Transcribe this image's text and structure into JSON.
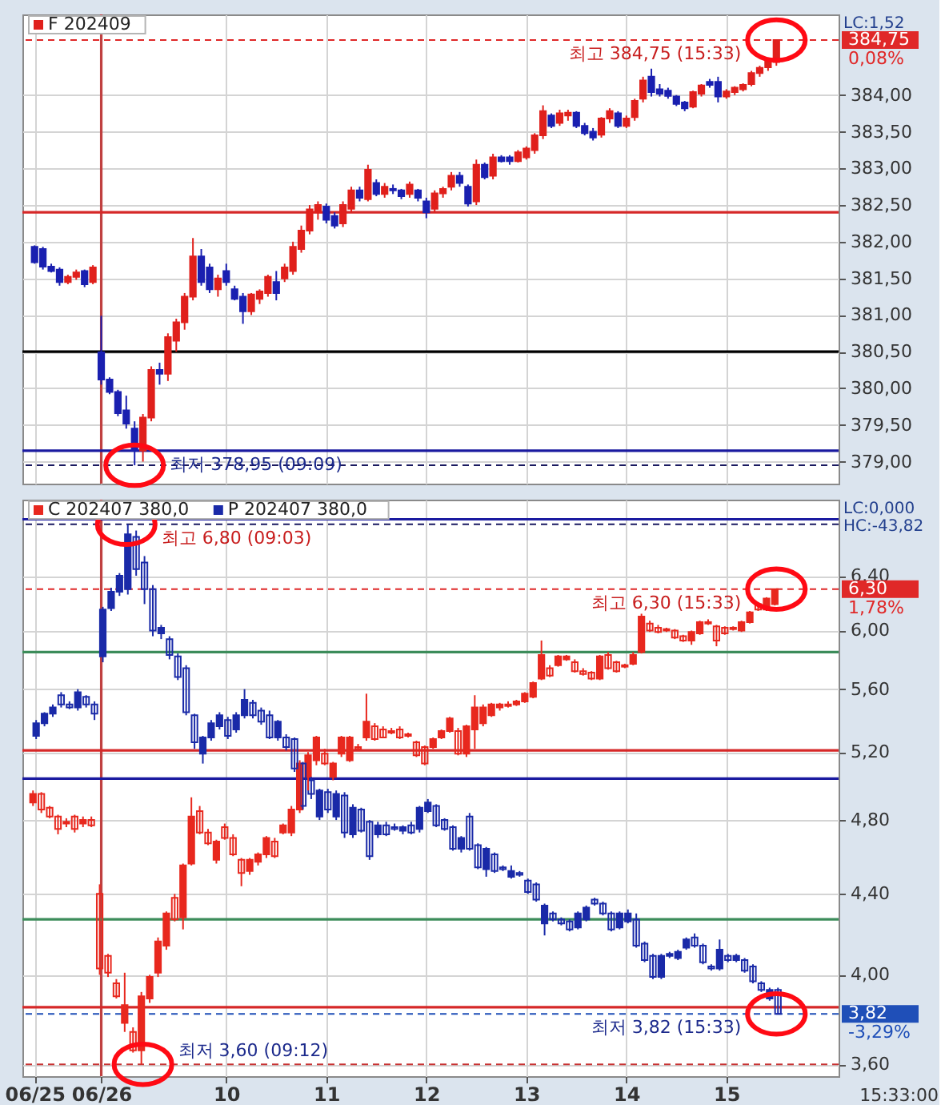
{
  "chart_data": [
    {
      "type": "candlestick",
      "categories": [
        "06/25",
        null,
        null,
        null,
        null,
        null,
        null,
        null,
        "06/26",
        null,
        null,
        null,
        null,
        null,
        null,
        null,
        null,
        null,
        null,
        null,
        null,
        null,
        null,
        "10",
        null,
        null,
        null,
        null,
        null,
        null,
        null,
        null,
        null,
        null,
        null,
        "11",
        null,
        null,
        null,
        null,
        null,
        null,
        null,
        null,
        null,
        null,
        null,
        "12",
        null,
        null,
        null,
        null,
        null,
        null,
        null,
        null,
        null,
        null,
        null,
        "13",
        null,
        null,
        null,
        null,
        null,
        null,
        null,
        null,
        null,
        null,
        null,
        "14",
        null,
        null,
        null,
        null,
        null,
        null,
        null,
        null,
        null,
        null,
        null,
        "15",
        null,
        null,
        null,
        null,
        null,
        null,
        null,
        null,
        null,
        null,
        null,
        null
      ],
      "series": [
        {
          "name": "F 202409",
          "color": "#e0201c",
          "colors": [
            "#1a20b0",
            "#1a20b0",
            "#1a20b0",
            "#1a20b0",
            "#e0201c",
            "#e0201c",
            "#1a20b0",
            "#e0201c",
            "#1a20b0",
            "#1a20b0",
            "#1a20b0",
            "#1a20b0",
            "#1a20b0",
            "#e0201c",
            "#e0201c",
            "#1a20b0",
            "#e0201c",
            "#e0201c",
            "#e0201c",
            "#e0201c",
            "#1a20b0",
            "#1a20b0",
            "#e0201c",
            "#1a20b0",
            "#1a20b0",
            "#1a20b0",
            "#e0201c",
            "#e0201c",
            "#e0201c",
            "#1a20b0",
            "#e0201c",
            "#e0201c",
            "#e0201c",
            "#e0201c",
            "#e0201c",
            "#1a20b0",
            "#1a20b0",
            "#e0201c",
            "#e0201c",
            "#1a20b0",
            "#e0201c",
            "#1a20b0",
            "#e0201c",
            "#1a20b0",
            "#1a20b0",
            "#e0201c",
            "#1a20b0",
            "#1a20b0",
            "#e0201c",
            "#e0201c",
            "#e0201c",
            "#1a20b0",
            "#1a20b0",
            "#e0201c",
            "#1a20b0",
            "#e0201c",
            "#1a20b0",
            "#1a20b0",
            "#e0201c",
            "#e0201c",
            "#e0201c",
            "#e0201c",
            "#1a20b0",
            "#e0201c",
            "#e0201c",
            "#1a20b0",
            "#1a20b0",
            "#1a20b0",
            "#e0201c",
            "#e0201c",
            "#1a20b0",
            "#e0201c",
            "#e0201c",
            "#e0201c",
            "#1a20b0",
            "#1a20b0",
            "#1a20b0",
            "#1a20b0",
            "#1a20b0",
            "#e0201c",
            "#e0201c",
            "#1a20b0",
            "#1a20b0",
            "#e0201c",
            "#e0201c",
            "#e0201c",
            "#e0201c",
            "#e0201c",
            "#e0201c",
            "#e0201c",
            null,
            null,
            null,
            null,
            null,
            null
          ],
          "ohlc": [
            [
              381.93,
              381.95,
              381.7,
              381.72
            ],
            [
              381.9,
              381.93,
              381.62,
              381.66
            ],
            [
              381.66,
              381.7,
              381.58,
              381.6
            ],
            [
              381.62,
              381.65,
              381.4,
              381.45
            ],
            [
              381.45,
              381.55,
              381.42,
              381.52
            ],
            [
              381.52,
              381.62,
              381.48,
              381.58
            ],
            [
              381.6,
              381.62,
              381.38,
              381.42
            ],
            [
              381.45,
              381.68,
              381.42,
              381.65
            ],
            [
              380.49,
              380.99,
              380.05,
              380.12
            ],
            [
              380.12,
              380.15,
              379.92,
              379.95
            ],
            [
              379.95,
              379.98,
              379.62,
              379.66
            ],
            [
              379.7,
              379.9,
              379.45,
              379.52
            ],
            [
              379.45,
              379.55,
              378.95,
              379.15
            ],
            [
              379.15,
              379.65,
              379.0,
              379.6
            ],
            [
              379.6,
              380.3,
              379.55,
              380.25
            ],
            [
              380.25,
              380.35,
              380.05,
              380.2
            ],
            [
              380.2,
              380.75,
              380.1,
              380.7
            ],
            [
              380.65,
              380.95,
              380.5,
              380.9
            ],
            [
              380.9,
              381.3,
              380.8,
              381.25
            ],
            [
              381.25,
              382.05,
              381.2,
              381.8
            ],
            [
              381.8,
              381.9,
              381.4,
              381.45
            ],
            [
              381.65,
              381.7,
              381.3,
              381.35
            ],
            [
              381.35,
              381.55,
              381.25,
              381.5
            ],
            [
              381.6,
              381.7,
              381.4,
              381.45
            ],
            [
              381.35,
              381.4,
              381.2,
              381.22
            ],
            [
              381.25,
              381.3,
              380.88,
              381.05
            ],
            [
              381.05,
              381.3,
              381.0,
              381.28
            ],
            [
              381.22,
              381.35,
              381.15,
              381.32
            ],
            [
              381.3,
              381.55,
              381.25,
              381.52
            ],
            [
              381.45,
              381.6,
              381.2,
              381.3
            ],
            [
              381.5,
              381.7,
              381.45,
              381.65
            ],
            [
              381.6,
              382.0,
              381.55,
              381.93
            ],
            [
              381.9,
              382.22,
              381.85,
              382.15
            ],
            [
              382.15,
              382.5,
              382.1,
              382.44
            ],
            [
              382.4,
              382.55,
              382.3,
              382.5
            ],
            [
              382.48,
              382.52,
              382.25,
              382.3
            ],
            [
              382.35,
              382.4,
              382.18,
              382.22
            ],
            [
              382.25,
              382.55,
              382.2,
              382.5
            ],
            [
              382.45,
              382.75,
              382.4,
              382.7
            ],
            [
              382.7,
              382.75,
              382.55,
              382.6
            ],
            [
              382.58,
              383.05,
              382.55,
              382.98
            ],
            [
              382.8,
              382.85,
              382.62,
              382.65
            ],
            [
              382.65,
              382.8,
              382.6,
              382.75
            ],
            [
              382.72,
              382.78,
              382.65,
              382.7
            ],
            [
              382.7,
              382.72,
              382.58,
              382.62
            ],
            [
              382.65,
              382.82,
              382.6,
              382.78
            ],
            [
              382.7,
              382.72,
              382.55,
              382.6
            ],
            [
              382.55,
              382.6,
              382.32,
              382.4
            ],
            [
              382.45,
              382.7,
              382.4,
              382.66
            ],
            [
              382.66,
              382.75,
              382.6,
              382.72
            ],
            [
              382.75,
              382.95,
              382.7,
              382.9
            ],
            [
              382.9,
              382.95,
              382.75,
              382.8
            ],
            [
              382.75,
              382.78,
              382.48,
              382.52
            ],
            [
              382.55,
              383.12,
              382.5,
              383.05
            ],
            [
              383.05,
              383.08,
              382.85,
              382.88
            ],
            [
              382.9,
              383.2,
              382.85,
              383.15
            ],
            [
              383.15,
              383.18,
              383.08,
              383.1
            ],
            [
              383.15,
              383.18,
              383.05,
              383.1
            ],
            [
              383.1,
              383.25,
              383.08,
              383.22
            ],
            [
              383.15,
              383.3,
              383.12,
              383.27
            ],
            [
              383.25,
              383.48,
              383.2,
              383.45
            ],
            [
              383.45,
              383.86,
              383.4,
              383.78
            ],
            [
              383.72,
              383.75,
              383.55,
              383.58
            ],
            [
              383.62,
              383.8,
              383.58,
              383.75
            ],
            [
              383.72,
              383.8,
              383.65,
              383.76
            ],
            [
              383.76,
              383.78,
              383.55,
              383.58
            ],
            [
              383.58,
              383.62,
              383.45,
              383.48
            ],
            [
              383.5,
              383.55,
              383.38,
              383.42
            ],
            [
              383.46,
              383.7,
              383.42,
              383.68
            ],
            [
              383.68,
              383.82,
              383.62,
              383.78
            ],
            [
              383.75,
              383.78,
              383.55,
              383.58
            ],
            [
              383.58,
              383.72,
              383.55,
              383.68
            ],
            [
              383.7,
              383.95,
              383.65,
              383.92
            ],
            [
              383.95,
              384.25,
              383.9,
              384.2
            ],
            [
              384.25,
              384.36,
              383.98,
              384.04
            ],
            [
              384.08,
              384.15,
              383.98,
              384.02
            ],
            [
              384.06,
              384.1,
              383.95,
              383.99
            ],
            [
              383.98,
              384.0,
              383.85,
              383.88
            ],
            [
              383.9,
              383.92,
              383.78,
              383.82
            ],
            [
              383.84,
              384.06,
              383.82,
              384.04
            ],
            [
              384.02,
              384.15,
              383.98,
              384.13
            ],
            [
              384.18,
              384.22,
              384.1,
              384.14
            ],
            [
              384.18,
              384.25,
              383.9,
              383.98
            ],
            [
              383.98,
              384.08,
              383.95,
              384.05
            ],
            [
              384.04,
              384.12,
              384.0,
              384.1
            ],
            [
              384.08,
              384.16,
              384.05,
              384.14
            ],
            [
              384.15,
              384.33,
              384.12,
              384.3
            ],
            [
              384.3,
              384.4,
              384.25,
              384.37
            ],
            [
              384.38,
              384.5,
              384.33,
              384.47
            ],
            [
              384.45,
              384.75,
              384.4,
              384.75
            ],
            null,
            null,
            null,
            null,
            null,
            null
          ]
        }
      ],
      "ylim": [
        378.7,
        385.1
      ],
      "yticks": [
        {
          "value": 379,
          "label": "379,00"
        },
        {
          "value": 379.5,
          "label": "379,50"
        },
        {
          "value": 380,
          "label": "380,00"
        },
        {
          "value": 380.5,
          "label": "380,50"
        },
        {
          "value": 381,
          "label": "381,00"
        },
        {
          "value": 381.5,
          "label": "381,50"
        },
        {
          "value": 382,
          "label": "382,00"
        },
        {
          "value": 382.5,
          "label": "382,50"
        },
        {
          "value": 383,
          "label": "383,00"
        },
        {
          "value": 383.5,
          "label": "383,50"
        },
        {
          "value": 384,
          "label": "384,00"
        }
      ],
      "grid": true,
      "legend": "top left",
      "tick_labels": "y",
      "ref_lines": [
        {
          "axis": "x",
          "value": "06/26",
          "color": "#c04040"
        },
        {
          "axis": "y",
          "value": 384.75,
          "color": "#e02828",
          "line_style": "dashed",
          "label": "384,75\n0,08%"
        },
        {
          "axis": "y",
          "value": 382.4,
          "color": "#d62828"
        },
        {
          "axis": "y",
          "value": 380.5,
          "color": "#000000"
        },
        {
          "axis": "y",
          "value": 379.15,
          "color": "#1a1aa0"
        },
        {
          "axis": "y",
          "value": 378.95,
          "color": "#1a1a60",
          "line_style": "dashed"
        }
      ],
      "annotations": [
        {
          "text": "최고 384,75 (15:33)",
          "y": 384.75
        },
        {
          "text": "최저 378,95 (09:09)",
          "y": 378.95
        },
        "LC:1,52"
      ]
    },
    {
      "type": "candlestick",
      "categories": [
        "06/25",
        null,
        null,
        null,
        null,
        null,
        null,
        null,
        "06/26",
        null,
        null,
        null,
        null,
        null,
        null,
        null,
        null,
        null,
        null,
        null,
        null,
        null,
        null,
        "10",
        null,
        null,
        null,
        null,
        null,
        null,
        null,
        null,
        null,
        null,
        null,
        "11",
        null,
        null,
        null,
        null,
        null,
        null,
        null,
        null,
        null,
        null,
        null,
        "12",
        null,
        null,
        null,
        null,
        null,
        null,
        null,
        null,
        null,
        null,
        null,
        "13",
        null,
        null,
        null,
        null,
        null,
        null,
        null,
        null,
        null,
        null,
        null,
        "14",
        null,
        null,
        null,
        null,
        null,
        null,
        null,
        null,
        null,
        null,
        null,
        "15",
        null,
        null,
        null,
        null,
        null,
        null,
        null,
        null,
        null,
        null,
        null,
        null
      ],
      "series": [
        {
          "name": "C 202407 380,0",
          "color": "#e8281e",
          "ohlc": [
            [
              4.9,
              4.97,
              4.88,
              4.95
            ],
            [
              4.95,
              4.96,
              4.84,
              4.86
            ],
            [
              4.87,
              4.88,
              4.81,
              4.82
            ],
            [
              4.82,
              4.83,
              4.72,
              4.75
            ],
            [
              4.78,
              4.81,
              4.76,
              4.79
            ],
            [
              4.82,
              4.83,
              4.73,
              4.75
            ],
            [
              4.78,
              4.82,
              4.76,
              4.8
            ],
            [
              4.8,
              4.82,
              4.76,
              4.77
            ],
            [
              4.4,
              4.45,
              4.0,
              4.03
            ],
            [
              4.09,
              4.1,
              3.99,
              4.01
            ],
            [
              3.96,
              3.98,
              3.89,
              3.9
            ],
            [
              3.78,
              4.01,
              3.74,
              3.86
            ],
            [
              3.74,
              3.76,
              3.65,
              3.66
            ],
            [
              3.66,
              3.92,
              3.6,
              3.9
            ],
            [
              3.89,
              4.0,
              3.87,
              3.99
            ],
            [
              4.01,
              4.18,
              3.99,
              4.16
            ],
            [
              4.14,
              4.31,
              4.12,
              4.3
            ],
            [
              4.38,
              4.4,
              4.26,
              4.27
            ],
            [
              4.28,
              4.56,
              4.22,
              4.55
            ],
            [
              4.56,
              4.93,
              4.55,
              4.82
            ],
            [
              4.85,
              4.88,
              4.72,
              4.73
            ],
            [
              4.73,
              4.75,
              4.66,
              4.67
            ],
            [
              4.58,
              4.69,
              4.56,
              4.68
            ],
            [
              4.76,
              4.78,
              4.69,
              4.7
            ],
            [
              4.7,
              4.72,
              4.6,
              4.61
            ],
            [
              4.58,
              4.59,
              4.44,
              4.51
            ],
            [
              4.52,
              4.59,
              4.5,
              4.58
            ],
            [
              4.57,
              4.62,
              4.55,
              4.61
            ],
            [
              4.61,
              4.71,
              4.59,
              4.7
            ],
            [
              4.68,
              4.7,
              4.59,
              4.6
            ],
            [
              4.73,
              4.78,
              4.72,
              4.77
            ],
            [
              4.73,
              4.88,
              4.71,
              4.86
            ],
            [
              4.86,
              5.15,
              4.84,
              5.13
            ],
            [
              5.05,
              5.2,
              4.97,
              5.18
            ],
            [
              5.15,
              5.3,
              5.12,
              5.29
            ],
            [
              5.19,
              5.22,
              5.12,
              5.13
            ],
            [
              5.05,
              5.14,
              5.03,
              5.13
            ],
            [
              5.19,
              5.3,
              5.17,
              5.29
            ],
            [
              5.15,
              5.3,
              5.14,
              5.29
            ],
            [
              5.23,
              5.25,
              5.21,
              5.22
            ],
            [
              5.29,
              5.57,
              5.27,
              5.39
            ],
            [
              5.36,
              5.38,
              5.27,
              5.28
            ],
            [
              5.34,
              5.36,
              5.29,
              5.29
            ],
            [
              5.33,
              5.35,
              5.31,
              5.32
            ],
            [
              5.34,
              5.36,
              5.28,
              5.29
            ],
            [
              5.31,
              5.32,
              5.29,
              5.3
            ],
            [
              5.26,
              5.27,
              5.17,
              5.18
            ],
            [
              5.23,
              5.24,
              5.12,
              5.13
            ],
            [
              5.23,
              5.29,
              5.22,
              5.28
            ],
            [
              5.29,
              5.34,
              5.28,
              5.33
            ],
            [
              5.33,
              5.42,
              5.32,
              5.41
            ],
            [
              5.33,
              5.35,
              5.18,
              5.19
            ],
            [
              5.19,
              5.37,
              5.17,
              5.36
            ],
            [
              5.34,
              5.56,
              5.22,
              5.48
            ],
            [
              5.38,
              5.5,
              5.36,
              5.48
            ],
            [
              5.43,
              5.51,
              5.42,
              5.5
            ],
            [
              5.48,
              5.51,
              5.46,
              5.5
            ],
            [
              5.5,
              5.52,
              5.48,
              5.49
            ],
            [
              5.5,
              5.53,
              5.49,
              5.52
            ],
            [
              5.52,
              5.58,
              5.51,
              5.57
            ],
            [
              5.55,
              5.65,
              5.54,
              5.64
            ],
            [
              5.67,
              5.93,
              5.66,
              5.83
            ],
            [
              5.74,
              5.76,
              5.68,
              5.69
            ],
            [
              5.76,
              5.83,
              5.75,
              5.82
            ],
            [
              5.8,
              5.83,
              5.79,
              5.82
            ],
            [
              5.78,
              5.8,
              5.71,
              5.72
            ],
            [
              5.72,
              5.74,
              5.69,
              5.7
            ],
            [
              5.71,
              5.72,
              5.66,
              5.67
            ],
            [
              5.67,
              5.83,
              5.66,
              5.82
            ],
            [
              5.83,
              5.85,
              5.73,
              5.74
            ],
            [
              5.78,
              5.79,
              5.71,
              5.72
            ],
            [
              5.75,
              5.77,
              5.74,
              5.76
            ],
            [
              5.77,
              5.85,
              5.76,
              5.83
            ],
            [
              5.85,
              6.12,
              5.84,
              6.1
            ],
            [
              6.05,
              6.07,
              5.99,
              6.0
            ],
            [
              6.02,
              6.04,
              5.98,
              5.99
            ],
            [
              6.0,
              6.02,
              5.99,
              6.01
            ],
            [
              6.0,
              6.01,
              5.94,
              5.95
            ],
            [
              5.96,
              5.97,
              5.92,
              5.93
            ],
            [
              5.93,
              6.0,
              5.9,
              5.99
            ],
            [
              5.98,
              6.07,
              5.97,
              6.06
            ],
            [
              6.06,
              6.08,
              6.04,
              6.05
            ],
            [
              6.03,
              6.04,
              5.89,
              5.93
            ],
            [
              6.02,
              6.03,
              5.97,
              5.98
            ],
            [
              6.01,
              6.03,
              6.0,
              6.02
            ],
            [
              6.0,
              6.07,
              5.99,
              6.06
            ],
            [
              6.06,
              6.14,
              6.05,
              6.13
            ],
            [
              6.19,
              6.2,
              6.14,
              6.15
            ],
            [
              6.15,
              6.24,
              6.14,
              6.23
            ],
            [
              6.19,
              6.3,
              6.18,
              6.3
            ],
            null,
            null,
            null,
            null,
            null,
            null
          ]
        },
        {
          "name": "P 202407 380,0",
          "color": "#1a2aa8",
          "ohlc": [
            [
              5.3,
              5.4,
              5.28,
              5.38
            ],
            [
              5.38,
              5.45,
              5.36,
              5.44
            ],
            [
              5.44,
              5.5,
              5.42,
              5.48
            ],
            [
              5.56,
              5.58,
              5.48,
              5.5
            ],
            [
              5.5,
              5.52,
              5.47,
              5.48
            ],
            [
              5.48,
              5.6,
              5.46,
              5.58
            ],
            [
              5.55,
              5.56,
              5.48,
              5.5
            ],
            [
              5.5,
              5.52,
              5.4,
              5.44
            ],
            [
              5.82,
              6.17,
              5.78,
              6.15
            ],
            [
              6.16,
              6.31,
              6.14,
              6.28
            ],
            [
              6.28,
              6.42,
              6.25,
              6.4
            ],
            [
              6.3,
              6.8,
              6.26,
              6.72
            ],
            [
              6.7,
              6.75,
              6.4,
              6.45
            ],
            [
              6.5,
              6.55,
              6.19,
              6.3
            ],
            [
              6.3,
              6.33,
              5.96,
              6.0
            ],
            [
              5.98,
              6.04,
              5.94,
              6.02
            ],
            [
              5.94,
              5.96,
              5.8,
              5.83
            ],
            [
              5.82,
              5.84,
              5.66,
              5.68
            ],
            [
              5.74,
              5.76,
              5.43,
              5.45
            ],
            [
              5.43,
              5.44,
              5.22,
              5.26
            ],
            [
              5.19,
              5.3,
              5.13,
              5.29
            ],
            [
              5.29,
              5.4,
              5.27,
              5.38
            ],
            [
              5.36,
              5.45,
              5.34,
              5.43
            ],
            [
              5.4,
              5.42,
              5.28,
              5.3
            ],
            [
              5.34,
              5.45,
              5.32,
              5.43
            ],
            [
              5.43,
              5.6,
              5.41,
              5.53
            ],
            [
              5.51,
              5.53,
              5.41,
              5.43
            ],
            [
              5.46,
              5.48,
              5.37,
              5.39
            ],
            [
              5.43,
              5.46,
              5.28,
              5.29
            ],
            [
              5.29,
              5.4,
              5.27,
              5.39
            ],
            [
              5.29,
              5.31,
              5.21,
              5.23
            ],
            [
              5.28,
              5.29,
              5.08,
              5.1
            ],
            [
              5.13,
              5.14,
              4.86,
              4.88
            ],
            [
              5.03,
              5.05,
              4.92,
              4.95
            ],
            [
              4.82,
              4.98,
              4.8,
              4.97
            ],
            [
              4.96,
              4.98,
              4.84,
              4.86
            ],
            [
              4.82,
              4.97,
              4.8,
              4.95
            ],
            [
              4.94,
              4.96,
              4.7,
              4.73
            ],
            [
              4.72,
              4.89,
              4.7,
              4.87
            ],
            [
              4.86,
              4.87,
              4.73,
              4.74
            ],
            [
              4.79,
              4.8,
              4.58,
              4.6
            ],
            [
              4.72,
              4.79,
              4.7,
              4.77
            ],
            [
              4.77,
              4.79,
              4.71,
              4.72
            ],
            [
              4.76,
              4.78,
              4.74,
              4.75
            ],
            [
              4.74,
              4.77,
              4.72,
              4.76
            ],
            [
              4.77,
              4.79,
              4.72,
              4.73
            ],
            [
              4.75,
              4.88,
              4.73,
              4.87
            ],
            [
              4.85,
              4.92,
              4.84,
              4.9
            ],
            [
              4.88,
              4.89,
              4.76,
              4.77
            ],
            [
              4.8,
              4.81,
              4.74,
              4.75
            ],
            [
              4.76,
              4.77,
              4.63,
              4.64
            ],
            [
              4.64,
              4.71,
              4.62,
              4.7
            ],
            [
              4.82,
              4.84,
              4.63,
              4.64
            ],
            [
              4.66,
              4.67,
              4.53,
              4.54
            ],
            [
              4.53,
              4.65,
              4.49,
              4.64
            ],
            [
              4.61,
              4.62,
              4.51,
              4.52
            ],
            [
              4.54,
              4.55,
              4.52,
              4.53
            ],
            [
              4.49,
              4.55,
              4.48,
              4.52
            ],
            [
              4.51,
              4.52,
              4.49,
              4.5
            ],
            [
              4.47,
              4.48,
              4.4,
              4.41
            ],
            [
              4.45,
              4.46,
              4.36,
              4.37
            ],
            [
              4.25,
              4.35,
              4.19,
              4.34
            ],
            [
              4.3,
              4.31,
              4.26,
              4.27
            ],
            [
              4.27,
              4.28,
              4.24,
              4.25
            ],
            [
              4.26,
              4.27,
              4.21,
              4.22
            ],
            [
              4.23,
              4.31,
              4.22,
              4.3
            ],
            [
              4.27,
              4.34,
              4.26,
              4.33
            ],
            [
              4.37,
              4.38,
              4.34,
              4.35
            ],
            [
              4.35,
              4.36,
              4.29,
              4.3
            ],
            [
              4.3,
              4.31,
              4.21,
              4.22
            ],
            [
              4.23,
              4.31,
              4.22,
              4.3
            ],
            [
              4.26,
              4.32,
              4.25,
              4.3
            ],
            [
              4.27,
              4.3,
              4.13,
              4.14
            ],
            [
              4.15,
              4.16,
              4.06,
              4.07
            ],
            [
              4.09,
              4.1,
              3.98,
              3.99
            ],
            [
              3.99,
              4.1,
              3.98,
              4.09
            ],
            [
              4.09,
              4.11,
              4.08,
              4.1
            ],
            [
              4.08,
              4.12,
              4.07,
              4.11
            ],
            [
              4.13,
              4.18,
              4.12,
              4.17
            ],
            [
              4.18,
              4.2,
              4.13,
              4.14
            ],
            [
              4.14,
              4.15,
              4.05,
              4.06
            ],
            [
              4.04,
              4.05,
              4.02,
              4.03
            ],
            [
              4.03,
              4.17,
              4.02,
              4.12
            ],
            [
              4.09,
              4.1,
              4.06,
              4.07
            ],
            [
              4.07,
              4.1,
              4.06,
              4.09
            ],
            [
              4.07,
              4.08,
              4.01,
              4.02
            ],
            [
              4.04,
              4.05,
              3.96,
              3.97
            ],
            [
              3.96,
              3.97,
              3.92,
              3.93
            ],
            [
              3.89,
              3.94,
              3.88,
              3.93
            ],
            [
              3.93,
              3.94,
              3.82,
              3.82
            ],
            null,
            null,
            null,
            null,
            null,
            null
          ]
        }
      ],
      "ylim": [
        3.55,
        7.0
      ],
      "log": "y",
      "yticks": [
        {
          "value": 3.6,
          "label": "3,60"
        },
        {
          "value": 4.0,
          "label": "4,00"
        },
        {
          "value": 4.4,
          "label": "4,40"
        },
        {
          "value": 4.8,
          "label": "4,80"
        },
        {
          "value": 5.2,
          "label": "5,20"
        },
        {
          "value": 5.6,
          "label": "5,60"
        },
        {
          "value": 6.0,
          "label": "6,00"
        },
        {
          "value": 6.4,
          "label": "6,40"
        }
      ],
      "xlabel": "15:33:00",
      "grid": true,
      "legend": "top left",
      "ref_lines": [
        {
          "axis": "x",
          "value": "06/26",
          "color": "#c04040"
        },
        {
          "axis": "y",
          "value": 6.84,
          "color": "#1a1aa0"
        },
        {
          "axis": "y",
          "value": 6.8,
          "color": "#1a1a60",
          "line_style": "dashed"
        },
        {
          "axis": "y",
          "value": 6.3,
          "color": "#e02828",
          "line_style": "dashed",
          "label": "6,30\n1,78%"
        },
        {
          "axis": "y",
          "value": 5.85,
          "color": "#3c8c5a"
        },
        {
          "axis": "y",
          "value": 5.21,
          "color": "#d62828"
        },
        {
          "axis": "y",
          "value": 5.04,
          "color": "#1a1aa0"
        },
        {
          "axis": "y",
          "value": 4.27,
          "color": "#3c8c5a"
        },
        {
          "axis": "y",
          "value": 3.85,
          "color": "#d62828"
        },
        {
          "axis": "y",
          "value": 3.82,
          "color": "#1f4fb8",
          "line_style": "dashed",
          "label": "3,82\n-3,29%"
        },
        {
          "axis": "y",
          "value": 3.6,
          "color": "#c83232",
          "line_style": "dashed"
        }
      ],
      "annotations": [
        {
          "text": "최고 6,80 (09:03)",
          "y": 6.8
        },
        {
          "text": "최고 6,30 (15:33)",
          "y": 6.3
        },
        {
          "text": "최저 3,60 (09:12)",
          "y": 3.6
        },
        {
          "text": "최저 3,82 (15:33)",
          "y": 3.82
        },
        "LC:0,000",
        "HC:-43,82"
      ]
    }
  ]
}
